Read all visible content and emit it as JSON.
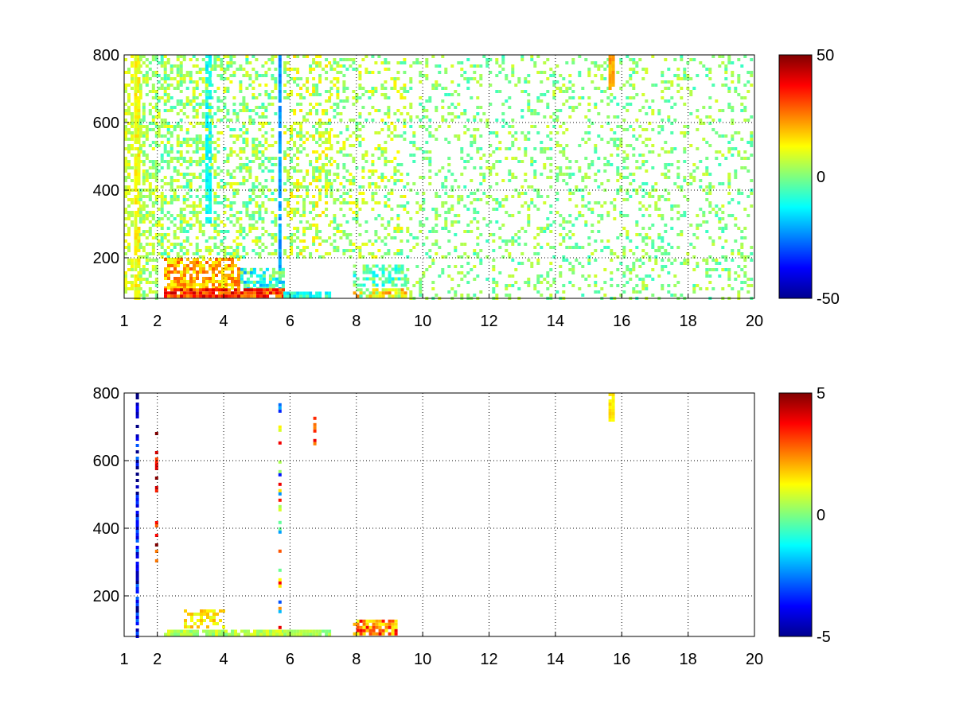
{
  "chart_data": [
    {
      "type": "heatmap",
      "title": "",
      "xlabel": "",
      "ylabel": "",
      "xlim": [
        1,
        20
      ],
      "ylim": [
        80,
        800
      ],
      "xticks": [
        1,
        2,
        4,
        6,
        8,
        10,
        12,
        14,
        16,
        18,
        20
      ],
      "yticks": [
        200,
        400,
        600,
        800
      ],
      "grid": true,
      "colormap": "jet",
      "colorbar": {
        "range": [
          -50,
          50
        ],
        "ticks": [
          50,
          0,
          -50
        ]
      },
      "regions": [
        {
          "x": [
            1.0,
            1.3
          ],
          "y": [
            80,
            800
          ],
          "value": 8,
          "density": 0.55,
          "spread": 6
        },
        {
          "x": [
            1.3,
            1.45
          ],
          "y": [
            80,
            800
          ],
          "value": 12,
          "density": 0.9,
          "spread": 5
        },
        {
          "x": [
            1.45,
            2.0
          ],
          "y": [
            80,
            800
          ],
          "value": 4,
          "density": 0.5,
          "spread": 8
        },
        {
          "x": [
            2.0,
            3.6
          ],
          "y": [
            200,
            800
          ],
          "value": 2,
          "density": 0.45,
          "spread": 10
        },
        {
          "x": [
            3.6,
            5.6
          ],
          "y": [
            200,
            800
          ],
          "value": 2,
          "density": 0.35,
          "spread": 10
        },
        {
          "x": [
            3.45,
            3.6
          ],
          "y": [
            300,
            800
          ],
          "value": -12,
          "density": 0.8,
          "spread": 4
        },
        {
          "x": [
            5.65,
            5.75
          ],
          "y": [
            90,
            800
          ],
          "value": -22,
          "density": 0.9,
          "spread": 4
        },
        {
          "x": [
            5.8,
            7.2
          ],
          "y": [
            200,
            800
          ],
          "value": 6,
          "density": 0.35,
          "spread": 10
        },
        {
          "x": [
            7.2,
            9.5
          ],
          "y": [
            200,
            800
          ],
          "value": 4,
          "density": 0.28,
          "spread": 10
        },
        {
          "x": [
            2.2,
            4.5
          ],
          "y": [
            110,
            200
          ],
          "value": 20,
          "density": 0.7,
          "spread": 10
        },
        {
          "x": [
            4.5,
            5.8
          ],
          "y": [
            100,
            170
          ],
          "value": -8,
          "density": 0.7,
          "spread": 14
        },
        {
          "x": [
            2.2,
            5.8
          ],
          "y": [
            80,
            110
          ],
          "value": 33,
          "density": 0.95,
          "spread": 12
        },
        {
          "x": [
            5.8,
            7.2
          ],
          "y": [
            80,
            100
          ],
          "value": -10,
          "density": 0.85,
          "spread": 8
        },
        {
          "x": [
            7.9,
            9.5
          ],
          "y": [
            80,
            110
          ],
          "value": 10,
          "density": 0.85,
          "spread": 16
        },
        {
          "x": [
            7.9,
            9.5
          ],
          "y": [
            110,
            180
          ],
          "value": -4,
          "density": 0.6,
          "spread": 10
        },
        {
          "x": [
            9.5,
            20.0
          ],
          "y": [
            80,
            800
          ],
          "value": 1,
          "density": 0.2,
          "spread": 8
        },
        {
          "x": [
            15.6,
            15.8
          ],
          "y": [
            700,
            800
          ],
          "value": 22,
          "density": 0.95,
          "spread": 4
        }
      ]
    },
    {
      "type": "heatmap",
      "title": "",
      "xlabel": "",
      "ylabel": "",
      "xlim": [
        1,
        20
      ],
      "ylim": [
        80,
        800
      ],
      "xticks": [
        1,
        2,
        4,
        6,
        8,
        10,
        12,
        14,
        16,
        18,
        20
      ],
      "yticks": [
        200,
        400,
        600,
        800
      ],
      "grid": true,
      "colormap": "jet",
      "colorbar": {
        "range": [
          -5,
          5
        ],
        "ticks": [
          5,
          0,
          -5
        ]
      },
      "regions": [
        {
          "x": [
            1.35,
            1.45
          ],
          "y": [
            80,
            800
          ],
          "value": -4,
          "density": 0.8,
          "spread": 1.5
        },
        {
          "x": [
            1.93,
            2.0
          ],
          "y": [
            300,
            760
          ],
          "value": 4,
          "density": 0.35,
          "spread": 1.5
        },
        {
          "x": [
            2.2,
            5.8
          ],
          "y": [
            80,
            100
          ],
          "value": 0.5,
          "density": 0.9,
          "spread": 0.6
        },
        {
          "x": [
            2.8,
            4.0
          ],
          "y": [
            100,
            160
          ],
          "value": 1.5,
          "density": 0.5,
          "spread": 0.6
        },
        {
          "x": [
            5.8,
            7.2
          ],
          "y": [
            80,
            100
          ],
          "value": 0.3,
          "density": 0.85,
          "spread": 0.5
        },
        {
          "x": [
            5.65,
            5.75
          ],
          "y": [
            100,
            770
          ],
          "value": 0,
          "density": 0.45,
          "spread": 4
        },
        {
          "x": [
            6.7,
            6.8
          ],
          "y": [
            650,
            730
          ],
          "value": 3,
          "density": 0.6,
          "spread": 1
        },
        {
          "x": [
            7.9,
            9.2
          ],
          "y": [
            80,
            130
          ],
          "value": 2.5,
          "density": 0.8,
          "spread": 1.5
        },
        {
          "x": [
            15.6,
            15.8
          ],
          "y": [
            720,
            800
          ],
          "value": 1.5,
          "density": 0.95,
          "spread": 0.3
        }
      ]
    }
  ]
}
